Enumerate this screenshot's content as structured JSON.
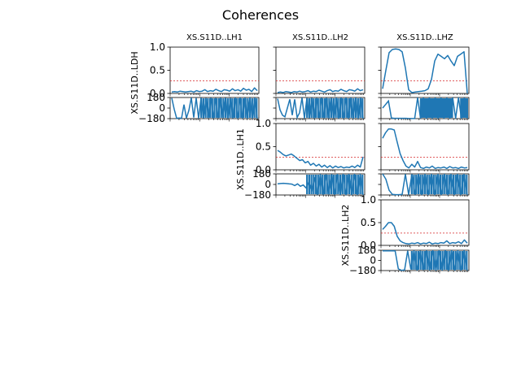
{
  "figure": {
    "title": "Coherences",
    "line_color": "#1f77b4",
    "threshold_color": "#d62728"
  },
  "chart_data": {
    "type": "line",
    "coherence_ylim": [
      0,
      1
    ],
    "coherence_yticks": [
      "0.0",
      "0.5",
      "1.0"
    ],
    "phase_ylim": [
      -180,
      180
    ],
    "phase_yticks": [
      "−180",
      "0",
      "180"
    ],
    "x_scale": "log",
    "threshold": 0.27,
    "column_titles": [
      "XS.S11D..LH1",
      "XS.S11D..LH2",
      "XS.S11D..LHZ"
    ],
    "row_labels": [
      "XS.S11D..LDH",
      "XS.S11D..LH1",
      "XS.S11D..LH2"
    ],
    "panels": [
      {
        "row": 0,
        "col": 0,
        "coherence": [
          0.03,
          0.04,
          0.03,
          0.05,
          0.04,
          0.03,
          0.04,
          0.05,
          0.03,
          0.06,
          0.04,
          0.05,
          0.08,
          0.04,
          0.06,
          0.05,
          0.09,
          0.06,
          0.04,
          0.08,
          0.07,
          0.05,
          0.1,
          0.06,
          0.08,
          0.05,
          0.11,
          0.07,
          0.09,
          0.04,
          0.12,
          0.06
        ],
        "phase": [
          170,
          -20,
          -175,
          -170,
          -175,
          60,
          -170,
          -40,
          175,
          -160,
          170,
          -175,
          175,
          -175,
          170,
          -170,
          175,
          -175,
          170,
          -170,
          175,
          -170,
          175,
          -175,
          170,
          -175,
          178,
          -178,
          178,
          -178,
          178,
          -178,
          178,
          -178,
          178,
          -178
        ]
      },
      {
        "row": 0,
        "col": 1,
        "coherence": [
          0.02,
          0.03,
          0.02,
          0.04,
          0.03,
          0.02,
          0.04,
          0.03,
          0.05,
          0.03,
          0.04,
          0.06,
          0.03,
          0.05,
          0.04,
          0.07,
          0.05,
          0.03,
          0.06,
          0.08,
          0.04,
          0.06,
          0.05,
          0.09,
          0.06,
          0.04,
          0.08,
          0.07,
          0.05,
          0.1,
          0.06,
          0.08
        ],
        "phase": [
          160,
          -30,
          -120,
          -150,
          0,
          150,
          -120,
          150,
          -160,
          -80,
          175,
          -175,
          170,
          -170,
          175,
          -175,
          170,
          -170,
          175,
          -170,
          175,
          -175,
          170,
          -175,
          178,
          -178,
          178,
          -178,
          178,
          -178,
          178,
          -178,
          178,
          -178,
          178,
          -178
        ]
      },
      {
        "row": 0,
        "col": 2,
        "coherence": [
          0.1,
          0.5,
          0.88,
          0.95,
          0.96,
          0.95,
          0.9,
          0.55,
          0.08,
          0.02,
          0.03,
          0.04,
          0.05,
          0.06,
          0.1,
          0.3,
          0.7,
          0.85,
          0.8,
          0.75,
          0.82,
          0.7,
          0.6,
          0.8,
          0.85,
          0.9,
          0.0
        ],
        "phase": [
          0,
          60,
          120,
          -170,
          -175,
          -175,
          -175,
          -175,
          -175,
          -178,
          -178,
          -178,
          178,
          -178,
          178,
          -178,
          178,
          -178,
          178,
          -178,
          178,
          -178,
          178,
          -178,
          178,
          -178,
          178,
          -178,
          178,
          -178
        ],
        "phase_gap": [
          0.82,
          0.9
        ]
      },
      {
        "row": 1,
        "col": 1,
        "coherence": [
          0.42,
          0.38,
          0.33,
          0.3,
          0.32,
          0.34,
          0.3,
          0.25,
          0.2,
          0.22,
          0.15,
          0.18,
          0.1,
          0.14,
          0.08,
          0.12,
          0.06,
          0.1,
          0.05,
          0.09,
          0.04,
          0.08,
          0.05,
          0.07,
          0.04,
          0.06,
          0.05,
          0.08,
          0.05,
          0.1,
          0.06,
          0.28
        ],
        "phase": [
          10,
          15,
          20,
          15,
          10,
          5,
          -20,
          10,
          -30,
          -10,
          -60,
          40,
          -120,
          120,
          -175,
          175,
          -175,
          170,
          -170,
          175,
          -175,
          178,
          -178,
          178,
          -178,
          178,
          -178,
          178,
          -178,
          178,
          -178
        ]
      },
      {
        "row": 1,
        "col": 2,
        "coherence": [
          0.68,
          0.8,
          0.88,
          0.88,
          0.86,
          0.6,
          0.35,
          0.2,
          0.08,
          0.04,
          0.12,
          0.06,
          0.18,
          0.05,
          0.03,
          0.06,
          0.04,
          0.08,
          0.03,
          0.05,
          0.04,
          0.06,
          0.03,
          0.07,
          0.04,
          0.05,
          0.03,
          0.06,
          0.04,
          0.05
        ],
        "phase": [
          180,
          90,
          -100,
          -170,
          -175,
          -175,
          -170,
          175,
          -175,
          175,
          -175,
          178,
          -178,
          178,
          -178,
          178,
          -178,
          178,
          -178,
          178,
          -178,
          178,
          -178,
          178,
          -178,
          178,
          -178
        ]
      },
      {
        "row": 2,
        "col": 2,
        "coherence": [
          0.35,
          0.42,
          0.5,
          0.5,
          0.42,
          0.2,
          0.1,
          0.06,
          0.04,
          0.03,
          0.05,
          0.04,
          0.06,
          0.03,
          0.05,
          0.04,
          0.07,
          0.03,
          0.05,
          0.04,
          0.06,
          0.05,
          0.1,
          0.04,
          0.06,
          0.05,
          0.08,
          0.04,
          0.12,
          0.05
        ],
        "phase": [
          170,
          168,
          170,
          172,
          168,
          -150,
          -175,
          -170,
          170,
          -160,
          175,
          -175,
          170,
          -170,
          175,
          -175,
          178,
          -178,
          178,
          -178,
          178,
          -178,
          178,
          -178,
          178,
          -178,
          178,
          -178
        ]
      }
    ]
  }
}
